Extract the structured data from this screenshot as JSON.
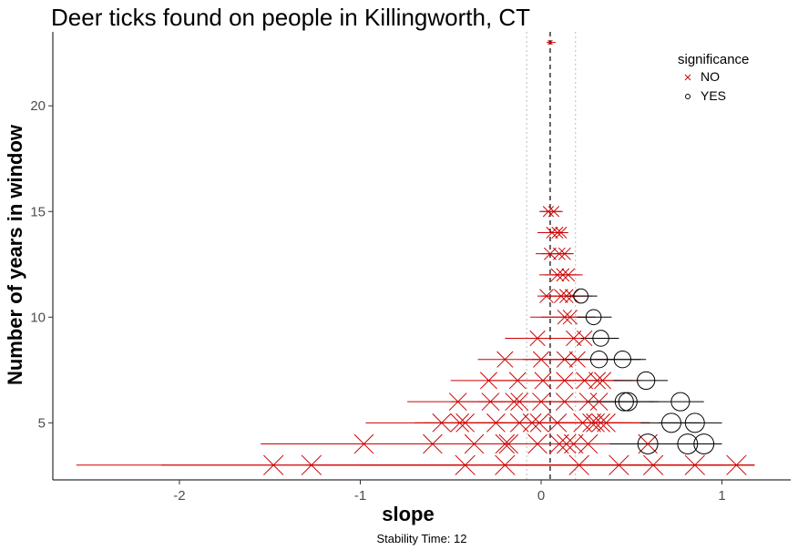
{
  "chart_data": {
    "type": "scatter",
    "title": "Deer ticks found on people in Killingworth, CT",
    "xlabel": "slope",
    "ylabel": "Number of years in window",
    "caption": "Stability Time: 12",
    "xlim": [
      -2.7,
      1.38
    ],
    "ylim": [
      2.3,
      23.5
    ],
    "x_ticks": [
      -2,
      -1,
      0,
      1
    ],
    "y_ticks": [
      5,
      10,
      15,
      20
    ],
    "reference_line_x": 0.05,
    "band_lines_x": [
      -0.08,
      0.19
    ],
    "grid": false,
    "legend": {
      "title": "significance",
      "position": "top-right",
      "entries": [
        {
          "label": "NO",
          "marker": "x",
          "color": "#cc0000"
        },
        {
          "label": "YES",
          "marker": "circle",
          "color": "#000000"
        }
      ]
    },
    "series": [
      {
        "name": "NO",
        "color": "#cc0000",
        "marker": "x",
        "points": [
          {
            "y": 23,
            "slope": 0.05,
            "lo": 0.03,
            "hi": 0.08
          },
          {
            "y": 15,
            "slope": 0.04,
            "lo": -0.01,
            "hi": 0.11
          },
          {
            "y": 15,
            "slope": 0.07,
            "lo": 0.0,
            "hi": 0.12
          },
          {
            "y": 14,
            "slope": 0.06,
            "lo": -0.02,
            "hi": 0.13
          },
          {
            "y": 14,
            "slope": 0.09,
            "lo": 0.01,
            "hi": 0.14
          },
          {
            "y": 14,
            "slope": 0.11,
            "lo": 0.03,
            "hi": 0.15
          },
          {
            "y": 13,
            "slope": 0.05,
            "lo": -0.03,
            "hi": 0.14
          },
          {
            "y": 13,
            "slope": 0.1,
            "lo": 0.0,
            "hi": 0.17
          },
          {
            "y": 13,
            "slope": 0.13,
            "lo": 0.03,
            "hi": 0.18
          },
          {
            "y": 12,
            "slope": 0.09,
            "lo": -0.01,
            "hi": 0.19
          },
          {
            "y": 12,
            "slope": 0.12,
            "lo": 0.02,
            "hi": 0.21
          },
          {
            "y": 12,
            "slope": 0.15,
            "lo": 0.06,
            "hi": 0.23
          },
          {
            "y": 11,
            "slope": 0.03,
            "lo": -0.02,
            "hi": 0.2
          },
          {
            "y": 11,
            "slope": 0.11,
            "lo": 0.0,
            "hi": 0.22
          },
          {
            "y": 11,
            "slope": 0.14,
            "lo": 0.03,
            "hi": 0.25
          },
          {
            "y": 11,
            "slope": 0.17,
            "lo": 0.05,
            "hi": 0.28
          },
          {
            "y": 10,
            "slope": 0.13,
            "lo": -0.06,
            "hi": 0.25
          },
          {
            "y": 10,
            "slope": 0.16,
            "lo": 0.0,
            "hi": 0.3
          },
          {
            "y": 9,
            "slope": -0.02,
            "lo": -0.2,
            "hi": 0.2
          },
          {
            "y": 9,
            "slope": 0.18,
            "lo": 0.0,
            "hi": 0.35
          },
          {
            "y": 9,
            "slope": 0.24,
            "lo": 0.05,
            "hi": 0.4
          },
          {
            "y": 8,
            "slope": -0.2,
            "lo": -0.35,
            "hi": 0.05
          },
          {
            "y": 8,
            "slope": 0.0,
            "lo": -0.1,
            "hi": 0.2
          },
          {
            "y": 8,
            "slope": 0.13,
            "lo": -0.05,
            "hi": 0.3
          },
          {
            "y": 8,
            "slope": 0.2,
            "lo": 0.0,
            "hi": 0.4
          },
          {
            "y": 7,
            "slope": -0.29,
            "lo": -0.5,
            "hi": -0.1
          },
          {
            "y": 7,
            "slope": -0.13,
            "lo": -0.3,
            "hi": 0.0
          },
          {
            "y": 7,
            "slope": 0.01,
            "lo": -0.1,
            "hi": 0.15
          },
          {
            "y": 7,
            "slope": 0.13,
            "lo": 0.0,
            "hi": 0.3
          },
          {
            "y": 7,
            "slope": 0.24,
            "lo": 0.05,
            "hi": 0.45
          },
          {
            "y": 7,
            "slope": 0.31,
            "lo": 0.1,
            "hi": 0.5
          },
          {
            "y": 7,
            "slope": 0.34,
            "lo": 0.15,
            "hi": 0.55
          },
          {
            "y": 6,
            "slope": -0.46,
            "lo": -0.74,
            "hi": -0.2
          },
          {
            "y": 6,
            "slope": -0.28,
            "lo": -0.5,
            "hi": -0.1
          },
          {
            "y": 6,
            "slope": -0.15,
            "lo": -0.35,
            "hi": 0.05
          },
          {
            "y": 6,
            "slope": -0.12,
            "lo": -0.3,
            "hi": 0.05
          },
          {
            "y": 6,
            "slope": 0.0,
            "lo": -0.15,
            "hi": 0.15
          },
          {
            "y": 6,
            "slope": 0.13,
            "lo": -0.05,
            "hi": 0.3
          },
          {
            "y": 6,
            "slope": 0.26,
            "lo": 0.05,
            "hi": 0.45
          },
          {
            "y": 6,
            "slope": 0.32,
            "lo": 0.1,
            "hi": 0.55
          },
          {
            "y": 5,
            "slope": -0.55,
            "lo": -0.97,
            "hi": -0.2
          },
          {
            "y": 5,
            "slope": -0.45,
            "lo": -0.7,
            "hi": -0.2
          },
          {
            "y": 5,
            "slope": -0.42,
            "lo": -0.65,
            "hi": -0.2
          },
          {
            "y": 5,
            "slope": -0.25,
            "lo": -0.5,
            "hi": 0.0
          },
          {
            "y": 5,
            "slope": -0.12,
            "lo": -0.35,
            "hi": 0.1
          },
          {
            "y": 5,
            "slope": -0.05,
            "lo": -0.25,
            "hi": 0.15
          },
          {
            "y": 5,
            "slope": -0.01,
            "lo": -0.2,
            "hi": 0.2
          },
          {
            "y": 5,
            "slope": 0.09,
            "lo": -0.1,
            "hi": 0.3
          },
          {
            "y": 5,
            "slope": 0.23,
            "lo": 0.0,
            "hi": 0.45
          },
          {
            "y": 5,
            "slope": 0.28,
            "lo": 0.05,
            "hi": 0.5
          },
          {
            "y": 5,
            "slope": 0.3,
            "lo": 0.05,
            "hi": 0.55
          },
          {
            "y": 5,
            "slope": 0.33,
            "lo": 0.1,
            "hi": 0.6
          },
          {
            "y": 5,
            "slope": 0.36,
            "lo": 0.1,
            "hi": 0.6
          },
          {
            "y": 4,
            "slope": -0.98,
            "lo": -1.55,
            "hi": -0.45
          },
          {
            "y": 4,
            "slope": -0.6,
            "lo": -1.0,
            "hi": -0.2
          },
          {
            "y": 4,
            "slope": -0.37,
            "lo": -0.7,
            "hi": 0.0
          },
          {
            "y": 4,
            "slope": -0.2,
            "lo": -0.5,
            "hi": 0.1
          },
          {
            "y": 4,
            "slope": -0.18,
            "lo": -0.4,
            "hi": 0.05
          },
          {
            "y": 4,
            "slope": -0.02,
            "lo": -0.25,
            "hi": 0.2
          },
          {
            "y": 4,
            "slope": 0.1,
            "lo": -0.1,
            "hi": 0.3
          },
          {
            "y": 4,
            "slope": 0.14,
            "lo": -0.05,
            "hi": 0.35
          },
          {
            "y": 4,
            "slope": 0.18,
            "lo": 0.0,
            "hi": 0.4
          },
          {
            "y": 4,
            "slope": 0.26,
            "lo": 0.05,
            "hi": 0.5
          },
          {
            "y": 4,
            "slope": 0.59,
            "lo": 0.2,
            "hi": 0.9
          },
          {
            "y": 3,
            "slope": -1.48,
            "lo": -2.57,
            "hi": -0.4
          },
          {
            "y": 3,
            "slope": -1.27,
            "lo": -2.1,
            "hi": -0.4
          },
          {
            "y": 3,
            "slope": -0.42,
            "lo": -1.3,
            "hi": 0.5
          },
          {
            "y": 3,
            "slope": -0.2,
            "lo": -1.0,
            "hi": 0.6
          },
          {
            "y": 3,
            "slope": 0.21,
            "lo": -0.4,
            "hi": 0.8
          },
          {
            "y": 3,
            "slope": 0.43,
            "lo": -0.2,
            "hi": 1.0
          },
          {
            "y": 3,
            "slope": 0.62,
            "lo": 0.0,
            "hi": 1.18
          },
          {
            "y": 3,
            "slope": 0.85,
            "lo": 0.2,
            "hi": 1.18
          },
          {
            "y": 3,
            "slope": 1.08,
            "lo": 0.5,
            "hi": 1.18
          }
        ]
      },
      {
        "name": "YES",
        "color": "#000000",
        "marker": "circle",
        "points": [
          {
            "y": 11,
            "slope": 0.22,
            "lo": 0.15,
            "hi": 0.31
          },
          {
            "y": 10,
            "slope": 0.29,
            "lo": 0.2,
            "hi": 0.39
          },
          {
            "y": 9,
            "slope": 0.33,
            "lo": 0.22,
            "hi": 0.43
          },
          {
            "y": 8,
            "slope": 0.32,
            "lo": 0.12,
            "hi": 0.55
          },
          {
            "y": 8,
            "slope": 0.45,
            "lo": 0.3,
            "hi": 0.58
          },
          {
            "y": 7,
            "slope": 0.58,
            "lo": 0.4,
            "hi": 0.7
          },
          {
            "y": 6,
            "slope": 0.46,
            "lo": 0.25,
            "hi": 0.62
          },
          {
            "y": 6,
            "slope": 0.48,
            "lo": 0.3,
            "hi": 0.65
          },
          {
            "y": 6,
            "slope": 0.77,
            "lo": 0.6,
            "hi": 0.9
          },
          {
            "y": 5,
            "slope": 0.72,
            "lo": 0.55,
            "hi": 0.88
          },
          {
            "y": 5,
            "slope": 0.85,
            "lo": 0.65,
            "hi": 1.0
          },
          {
            "y": 4,
            "slope": 0.59,
            "lo": 0.38,
            "hi": 0.78
          },
          {
            "y": 4,
            "slope": 0.81,
            "lo": 0.6,
            "hi": 0.98
          },
          {
            "y": 4,
            "slope": 0.9,
            "lo": 0.7,
            "hi": 1.0
          }
        ]
      }
    ]
  }
}
